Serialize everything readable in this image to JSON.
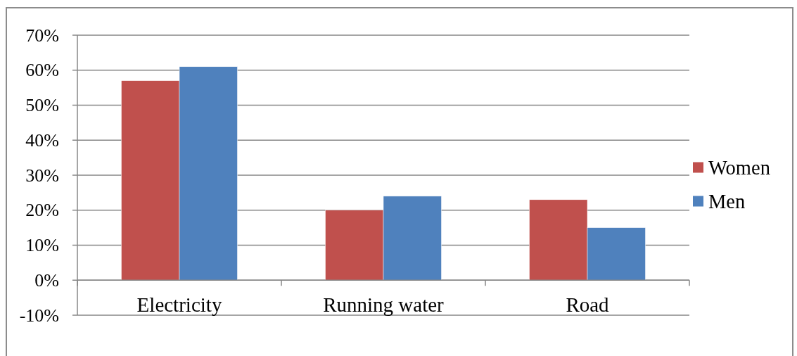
{
  "chart_data": {
    "type": "bar",
    "categories": [
      "Electricity",
      "Running water",
      "Road"
    ],
    "series": [
      {
        "name": "Women",
        "color": "#c0504d",
        "values": [
          57,
          20,
          23
        ]
      },
      {
        "name": "Men",
        "color": "#4f81bd",
        "values": [
          61,
          24,
          15
        ]
      }
    ],
    "ylim": [
      -10,
      70
    ],
    "yticks": [
      {
        "value": -10,
        "label": "-10%"
      },
      {
        "value": 0,
        "label": "0%"
      },
      {
        "value": 10,
        "label": "10%"
      },
      {
        "value": 20,
        "label": "20%"
      },
      {
        "value": 30,
        "label": "30%"
      },
      {
        "value": 40,
        "label": "40%"
      },
      {
        "value": 50,
        "label": "50%"
      },
      {
        "value": 60,
        "label": "60%"
      },
      {
        "value": 70,
        "label": "70%"
      }
    ],
    "grid": "y",
    "legend": "right"
  }
}
